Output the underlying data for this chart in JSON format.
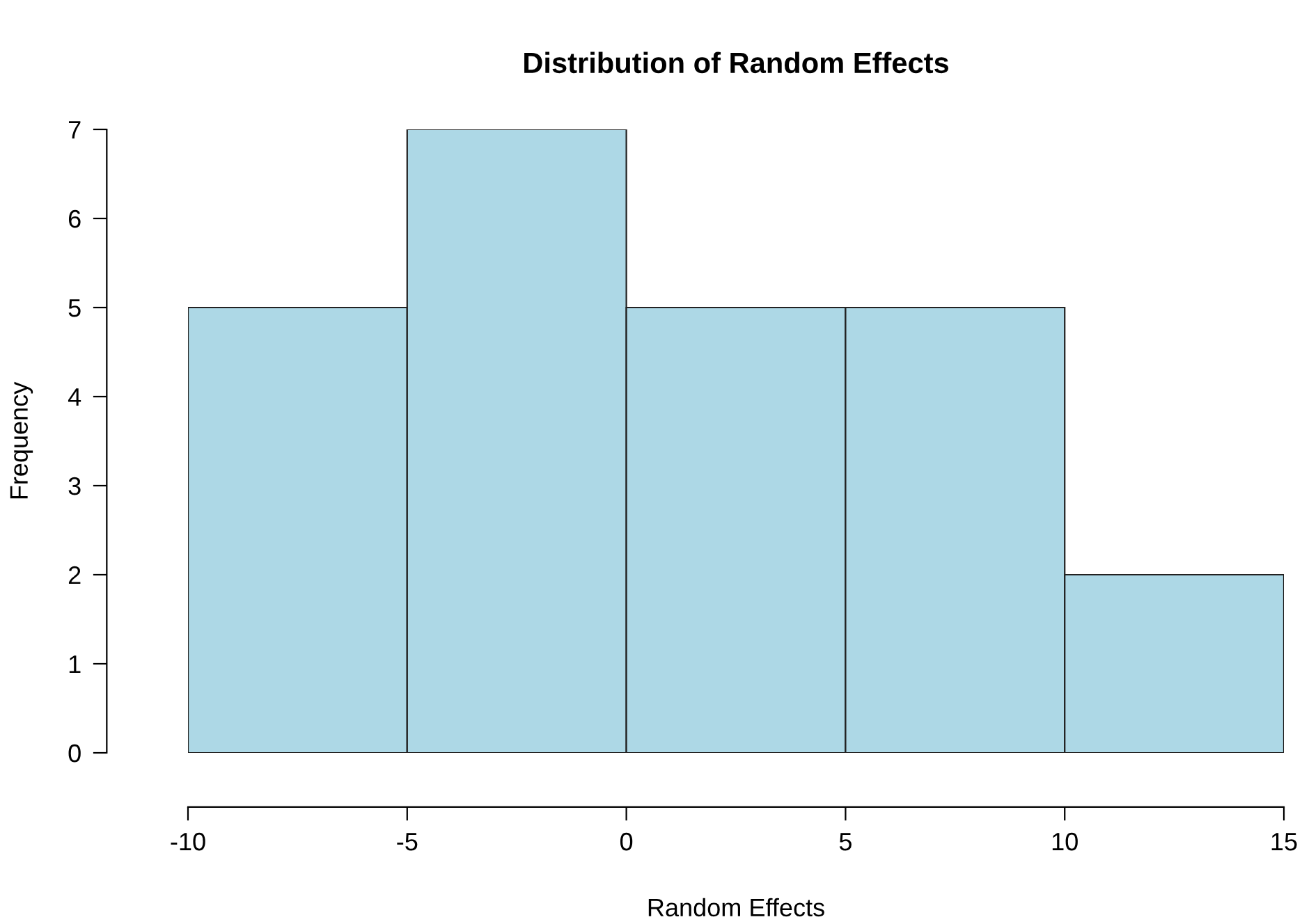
{
  "chart_data": {
    "type": "histogram",
    "title": "Distribution of Random Effects",
    "xlabel": "Random Effects",
    "ylabel": "Frequency",
    "bins": [
      -10,
      -5,
      0,
      5,
      10,
      15
    ],
    "values": [
      5,
      7,
      5,
      5,
      2
    ],
    "color": "#add8e6",
    "xlim": [
      -10,
      15
    ],
    "ylim": [
      0,
      7
    ],
    "xticks": [
      -10,
      -5,
      0,
      5,
      10,
      15
    ],
    "yticks": [
      0,
      1,
      2,
      3,
      4,
      5,
      6,
      7
    ],
    "grid": false,
    "legend": false
  }
}
